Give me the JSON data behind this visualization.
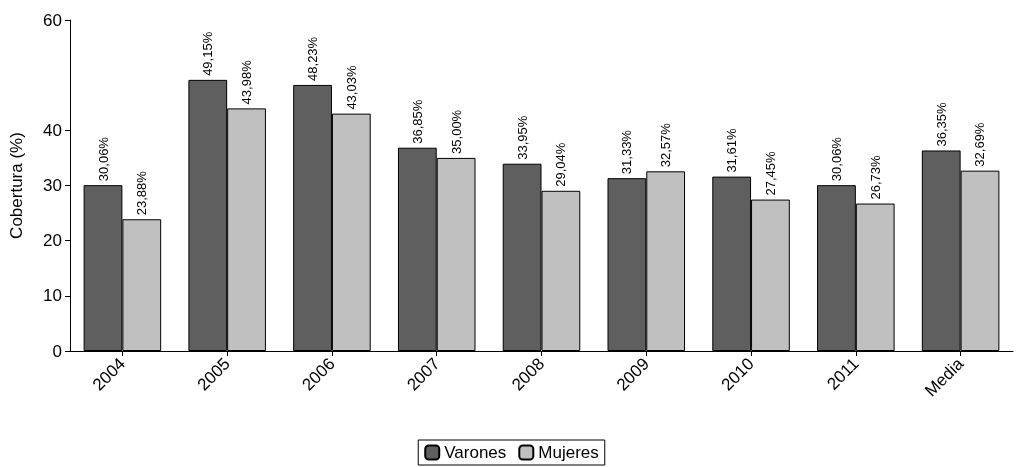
{
  "chart_data": {
    "type": "bar",
    "ylabel": "Cobertura (%)",
    "categories": [
      "2004",
      "2005",
      "2006",
      "2007",
      "2008",
      "2009",
      "2010",
      "2011",
      "Media"
    ],
    "series": [
      {
        "name": "Varones",
        "color": "#5f5f5f",
        "values": [
          30.06,
          49.15,
          48.23,
          36.85,
          33.95,
          31.33,
          31.61,
          30.06,
          36.35
        ],
        "value_labels": [
          "30,06%",
          "49,15%",
          "48,23%",
          "36,85%",
          "33,95%",
          "31,33%",
          "31,61%",
          "30,06%",
          "36,35%"
        ]
      },
      {
        "name": "Mujeres",
        "color": "#c0c0c0",
        "values": [
          23.88,
          43.98,
          43.03,
          35.0,
          29.04,
          32.57,
          27.45,
          26.73,
          32.69
        ],
        "value_labels": [
          "23,88%",
          "43,98%",
          "43,03%",
          "35,00%",
          "29,04%",
          "32,57%",
          "27,45%",
          "26,73%",
          "32,69%"
        ]
      }
    ],
    "ylim": [
      0,
      60
    ],
    "yticks": [
      0,
      10,
      20,
      30,
      40,
      60
    ],
    "grid": false,
    "legend": "bottom"
  }
}
